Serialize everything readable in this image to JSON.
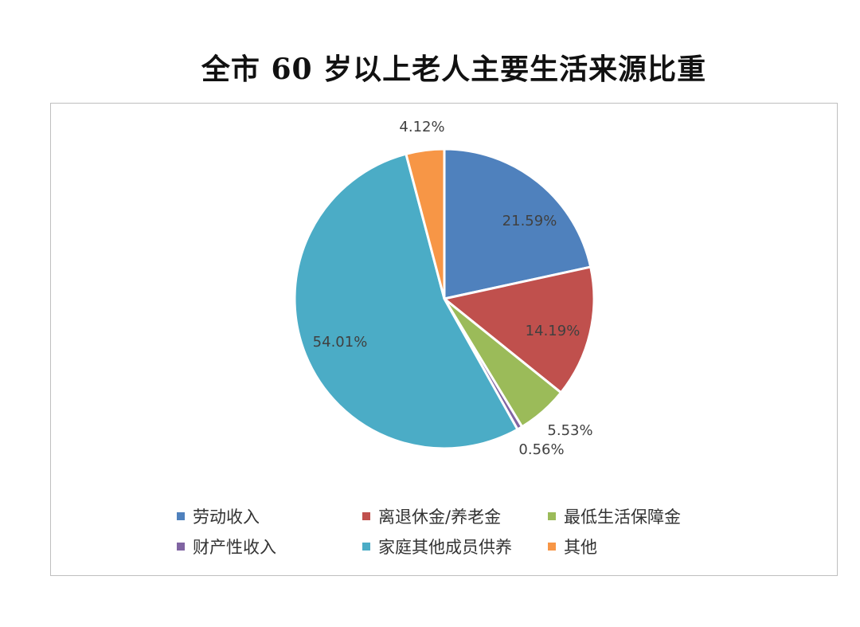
{
  "title": "全市 60 岁以上老人主要生活来源比重",
  "chart_data": {
    "type": "pie",
    "title": "全市 60 岁以上老人主要生活来源比重",
    "start_angle_deg": 0,
    "direction": "clockwise",
    "legend_position": "bottom",
    "slices": [
      {
        "label": "劳动收入",
        "value": 21.59,
        "display": "21.59%",
        "color": "#4F81BD"
      },
      {
        "label": "离退休金/养老金",
        "value": 14.19,
        "display": "14.19%",
        "color": "#C0504D"
      },
      {
        "label": "最低生活保障金",
        "value": 5.53,
        "display": "5.53%",
        "color": "#9BBB59"
      },
      {
        "label": "财产性收入",
        "value": 0.56,
        "display": "0.56%",
        "color": "#8064A2"
      },
      {
        "label": "家庭其他成员供养",
        "value": 54.01,
        "display": "54.01%",
        "color": "#4BACC6"
      },
      {
        "label": "其他",
        "value": 4.12,
        "display": "4.12%",
        "color": "#F79646"
      }
    ]
  }
}
